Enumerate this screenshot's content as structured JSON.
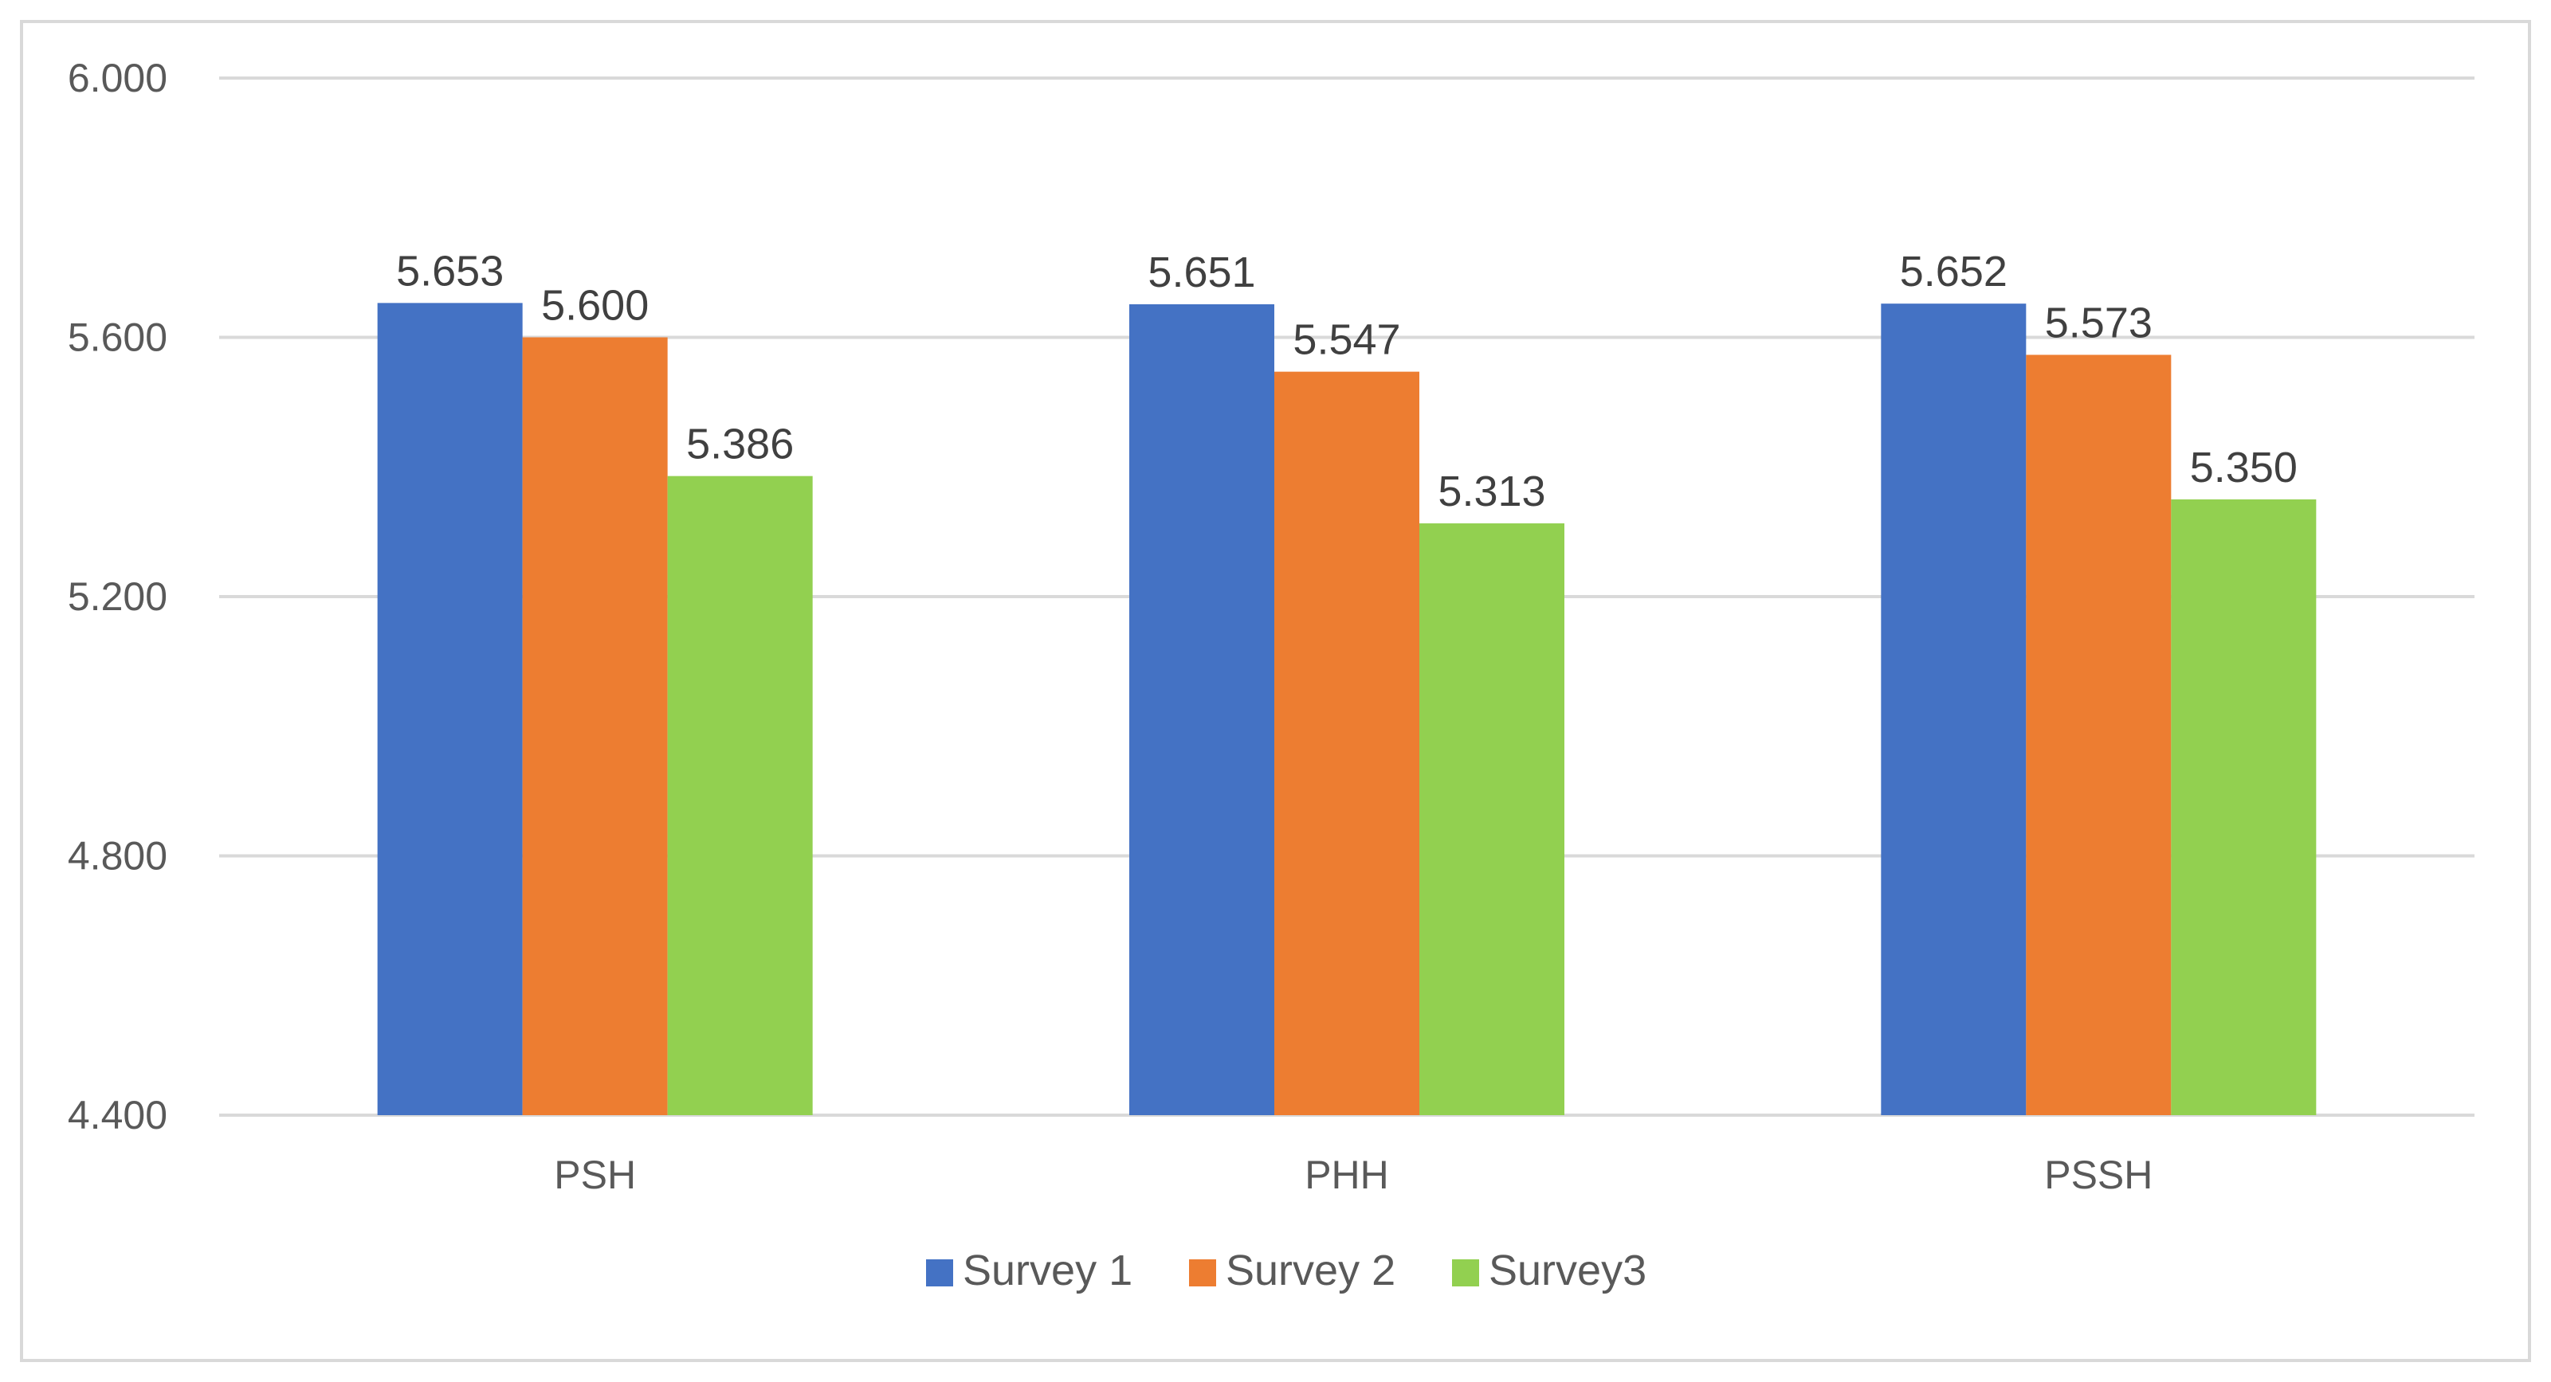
{
  "chart_data": {
    "type": "bar",
    "title": "",
    "xlabel": "",
    "ylabel": "",
    "categories": [
      "PSH",
      "PHH",
      "PSSH"
    ],
    "series": [
      {
        "name": "Survey 1",
        "color": "#4472c4",
        "values": [
          5.653,
          5.651,
          5.652
        ]
      },
      {
        "name": "Survey 2",
        "color": "#ed7d31",
        "values": [
          5.6,
          5.547,
          5.573
        ]
      },
      {
        "name": "Survey3",
        "color": "#92d050",
        "values": [
          5.386,
          5.313,
          5.35
        ]
      }
    ],
    "data_labels": [
      [
        "5.653",
        "5.651",
        "5.652"
      ],
      [
        "5.600",
        "5.547",
        "5.573"
      ],
      [
        "5.386",
        "5.313",
        "5.350"
      ]
    ],
    "ylim": [
      4.4,
      6.0
    ],
    "yticks": [
      4.4,
      4.8,
      5.2,
      5.6,
      6.0
    ],
    "ytick_labels": [
      "4.400",
      "4.800",
      "5.200",
      "5.600",
      "6.000"
    ],
    "grid": true,
    "legend_position": "bottom"
  }
}
